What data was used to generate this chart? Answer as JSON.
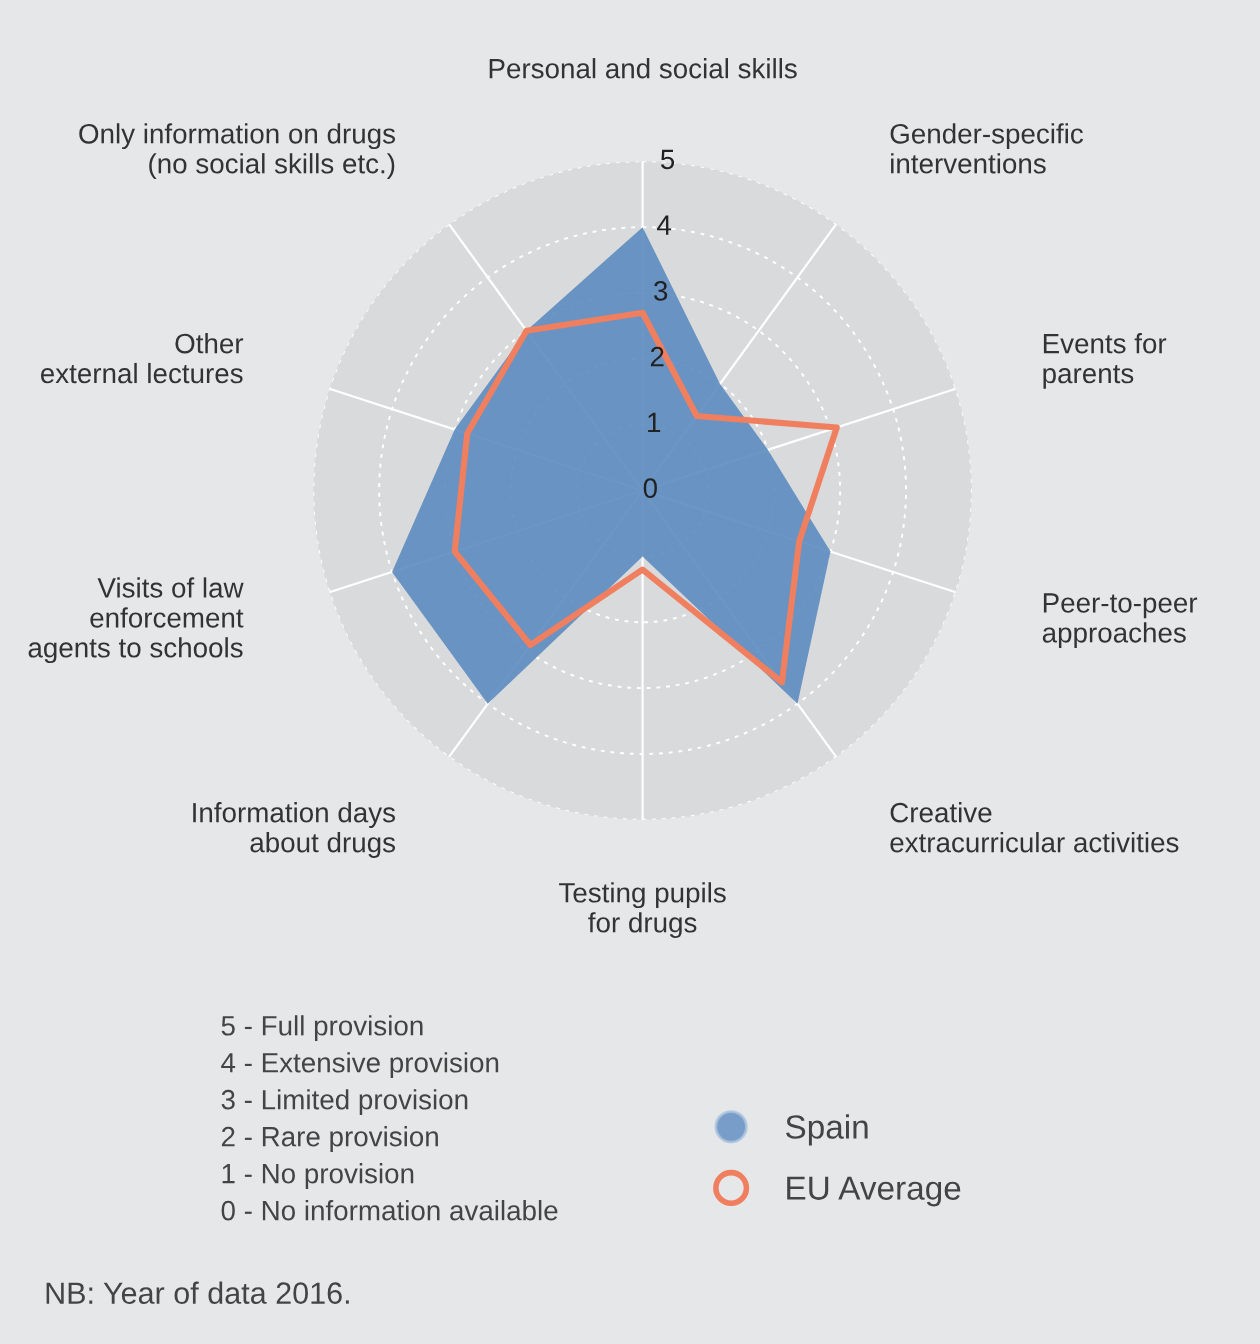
{
  "chart_data": {
    "type": "radar",
    "categories": [
      "Personal and social skills",
      "Gender-specific\ninterventions",
      "Events for\nparents",
      "Peer-to-peer\napproaches",
      "Creative\nextracurricular activities",
      "Testing pupils\nfor drugs",
      "Information days\nabout drugs",
      "Visits of law\nenforcement\nagents to schools",
      "Other\nexternal lectures",
      "Only information on drugs\n(no social skills etc.)"
    ],
    "series": [
      {
        "name": "Spain",
        "type": "area",
        "color": "#5b8bbf",
        "values": [
          4,
          2,
          2,
          3,
          4,
          1,
          4,
          4,
          3,
          3
        ]
      },
      {
        "name": "EU Average",
        "color": "#f07f5f",
        "values": [
          2.7,
          1.4,
          3.1,
          2.5,
          3.6,
          1.2,
          2.9,
          3.0,
          2.8,
          3.0
        ]
      }
    ],
    "ylim": [
      0,
      5
    ],
    "yticks": [
      0,
      1,
      2,
      3,
      4,
      5
    ],
    "grid": true,
    "legend": "bottom right",
    "annotations": [
      "5 - Full provision",
      "4 - Extensive provision",
      "3 - Limited provision",
      "2 - Rare provision",
      "1 - No provision",
      "0 - No information available",
      "NB: Year of data 2016."
    ]
  }
}
